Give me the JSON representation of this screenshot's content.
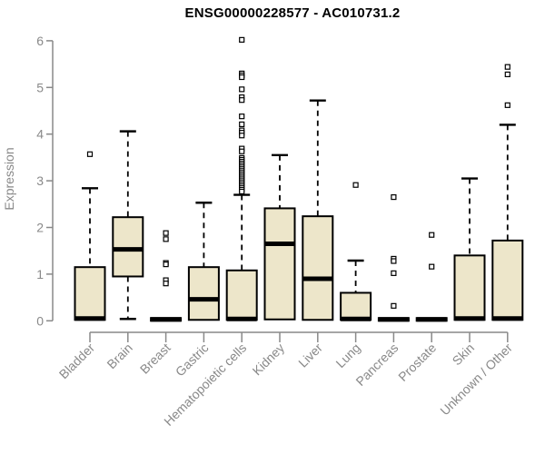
{
  "title": "ENSG00000228577 - AC010731.2",
  "chart_data": {
    "type": "boxplot",
    "title": "ENSG00000228577 - AC010731.2",
    "xlabel": "",
    "ylabel": "Expression",
    "ylim": [
      0,
      6
    ],
    "yticks": [
      0,
      1,
      2,
      3,
      4,
      5,
      6
    ],
    "grid": false,
    "legend": "none",
    "box_fill": "#EDE6CA",
    "box_stroke": "#000000",
    "median_color": "#000000",
    "whisker_style": "dashed",
    "outlier_marker": "open-square",
    "axis_color": "#898989",
    "label_color": "#898989",
    "title_color": "#000000",
    "categories": [
      "Bladder",
      "Brain",
      "Breast",
      "Gastric",
      "Hematopoietic cells",
      "Kidney",
      "Liver",
      "Lung",
      "Pancreas",
      "Prostate",
      "Skin",
      "Unknown / Other"
    ],
    "series": [
      {
        "category": "Bladder",
        "low": 0.02,
        "q1": 0.02,
        "median": 0.05,
        "q3": 1.15,
        "high": 2.84,
        "outliers": [
          3.57
        ]
      },
      {
        "category": "Brain",
        "low": 0.04,
        "q1": 0.95,
        "median": 1.53,
        "q3": 2.22,
        "high": 4.06,
        "outliers": []
      },
      {
        "category": "Breast",
        "low": 0.0,
        "q1": 0.0,
        "median": 0.03,
        "q3": 0.06,
        "high": 0.06,
        "outliers": [
          1.88,
          1.75,
          1.24,
          1.21,
          0.87,
          0.8
        ]
      },
      {
        "category": "Gastric",
        "low": 0.02,
        "q1": 0.02,
        "median": 0.46,
        "q3": 1.15,
        "high": 2.53,
        "outliers": []
      },
      {
        "category": "Hematopoietic cells",
        "low": 0.02,
        "q1": 0.02,
        "median": 0.04,
        "q3": 1.08,
        "high": 2.7,
        "outliers": [
          6.02,
          5.3,
          5.26,
          5.22,
          4.96,
          4.79,
          4.73,
          4.38,
          4.21,
          4.08,
          4.03,
          3.97,
          3.69,
          3.63,
          3.49,
          3.45,
          3.41,
          3.37,
          3.33,
          3.29,
          3.25,
          3.21,
          3.17,
          3.13,
          3.09,
          3.05,
          3.01,
          2.97,
          2.93,
          2.89,
          2.85,
          2.81,
          2.77
        ]
      },
      {
        "category": "Kidney",
        "low": 0.03,
        "q1": 0.03,
        "median": 1.65,
        "q3": 2.41,
        "high": 3.55,
        "outliers": []
      },
      {
        "category": "Liver",
        "low": 0.02,
        "q1": 0.02,
        "median": 0.9,
        "q3": 2.24,
        "high": 4.72,
        "outliers": []
      },
      {
        "category": "Lung",
        "low": 0.02,
        "q1": 0.02,
        "median": 0.04,
        "q3": 0.6,
        "high": 1.29,
        "outliers": [
          2.91
        ]
      },
      {
        "category": "Pancreas",
        "low": 0.0,
        "q1": 0.0,
        "median": 0.03,
        "q3": 0.06,
        "high": 0.06,
        "outliers": [
          2.65,
          1.33,
          1.28,
          1.02,
          0.32
        ]
      },
      {
        "category": "Prostate",
        "low": 0.0,
        "q1": 0.0,
        "median": 0.03,
        "q3": 0.06,
        "high": 0.06,
        "outliers": [
          1.84,
          1.16
        ]
      },
      {
        "category": "Skin",
        "low": 0.02,
        "q1": 0.02,
        "median": 0.05,
        "q3": 1.4,
        "high": 3.05,
        "outliers": []
      },
      {
        "category": "Unknown / Other",
        "low": 0.02,
        "q1": 0.02,
        "median": 0.05,
        "q3": 1.72,
        "high": 4.2,
        "outliers": [
          5.44,
          5.28,
          4.62
        ]
      }
    ]
  }
}
